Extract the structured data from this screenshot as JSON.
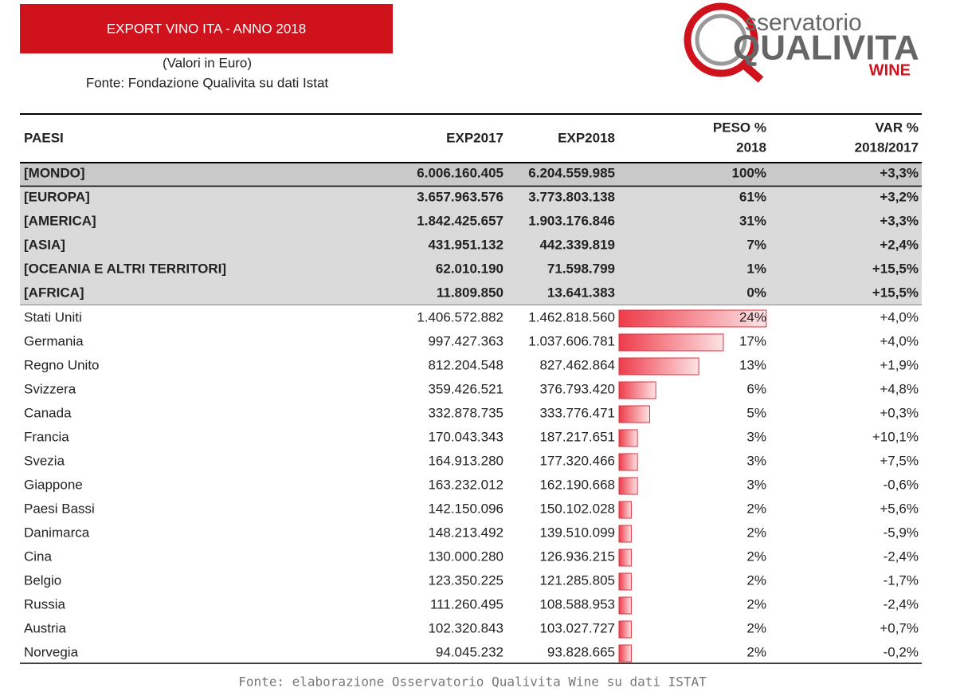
{
  "header": {
    "title": "EXPORT VINO ITA - ANNO 2018",
    "subtitle": "(Valori in Euro)",
    "source": "Fonte: Fondazione Qualivita su dati Istat"
  },
  "logo": {
    "line1": "sservatorio",
    "line2": "QUALIVITA",
    "line3": "WINE"
  },
  "table": {
    "columns": [
      [
        "PAESI"
      ],
      [
        "EXP2017"
      ],
      [
        "EXP2018"
      ],
      [
        "PESO %",
        "2018"
      ],
      [
        "VAR %",
        "2018/2017"
      ]
    ],
    "world": [
      [
        "[MONDO]",
        "6.006.160.405",
        "6.204.559.985",
        "100%",
        "+3,3%"
      ]
    ],
    "regions": [
      [
        "[EUROPA]",
        "3.657.963.576",
        "3.773.803.138",
        "61%",
        "+3,2%"
      ],
      [
        "[AMERICA]",
        "1.842.425.657",
        "1.903.176.846",
        "31%",
        "+3,3%"
      ],
      [
        "[ASIA]",
        "431.951.132",
        "442.339.819",
        "7%",
        "+2,4%"
      ],
      [
        "[OCEANIA E ALTRI TERRITORI]",
        "62.010.190",
        "71.598.799",
        "1%",
        "+15,5%"
      ],
      [
        "[AFRICA]",
        "11.809.850",
        "13.641.383",
        "0%",
        "+15,5%"
      ]
    ],
    "countries": [
      [
        "Stati Uniti",
        "1.406.572.882",
        "1.462.818.560",
        "24%",
        "+4,0%"
      ],
      [
        "Germania",
        "997.427.363",
        "1.037.606.781",
        "17%",
        "+4,0%"
      ],
      [
        "Regno Unito",
        "812.204.548",
        "827.462.864",
        "13%",
        "+1,9%"
      ],
      [
        "Svizzera",
        "359.426.521",
        "376.793.420",
        "6%",
        "+4,8%"
      ],
      [
        "Canada",
        "332.878.735",
        "333.776.471",
        "5%",
        "+0,3%"
      ],
      [
        "Francia",
        "170.043.343",
        "187.217.651",
        "3%",
        "+10,1%"
      ],
      [
        "Svezia",
        "164.913.280",
        "177.320.466",
        "3%",
        "+7,5%"
      ],
      [
        "Giappone",
        "163.232.012",
        "162.190.668",
        "3%",
        "-0,6%"
      ],
      [
        "Paesi Bassi",
        "142.150.096",
        "150.102.028",
        "2%",
        "+5,6%"
      ],
      [
        "Danimarca",
        "148.213.492",
        "139.510.099",
        "2%",
        "-5,9%"
      ],
      [
        "Cina",
        "130.000.280",
        "126.936.215",
        "2%",
        "-2,4%"
      ],
      [
        "Belgio",
        "123.350.225",
        "121.285.805",
        "2%",
        "-1,7%"
      ],
      [
        "Russia",
        "111.260.495",
        "108.588.953",
        "2%",
        "-2,4%"
      ],
      [
        "Austria",
        "102.320.843",
        "103.027.727",
        "2%",
        "+0,7%"
      ],
      [
        "Norvegia",
        "94.045.232",
        "93.828.665",
        "2%",
        "-0,2%"
      ]
    ]
  },
  "footer": {
    "note": "Fonte: elaborazione Osservatorio Qualivita Wine su dati ISTAT"
  }
}
